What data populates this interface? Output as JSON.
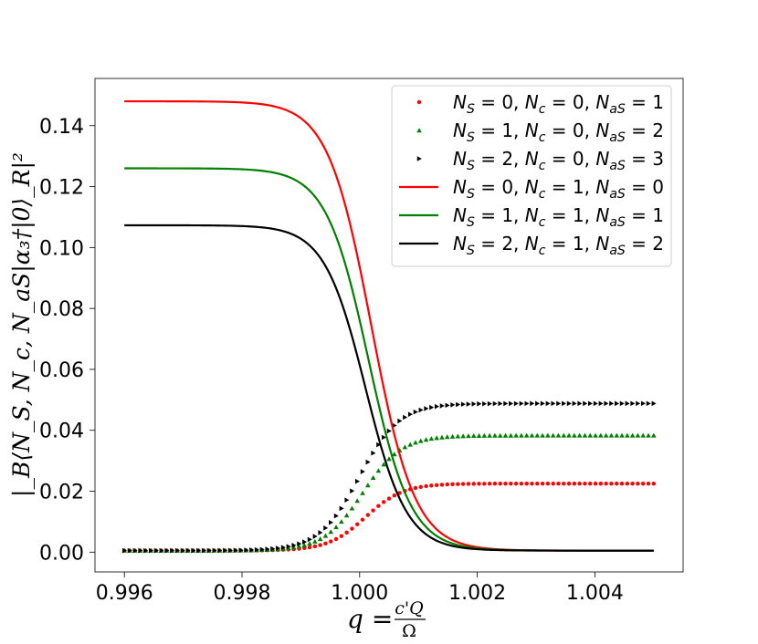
{
  "chart_data": {
    "type": "line",
    "title": "",
    "xlabel": "q = c'Q/Ω",
    "xlabel_parts": {
      "lhs": "q =",
      "num": "c'Q",
      "den": "Ω"
    },
    "ylabel": "|_B⟨N_S, N_c, N_aS|α₃†|0⟩_R|²",
    "xlim": [
      0.9955,
      1.0055
    ],
    "ylim": [
      -0.0065,
      0.1555
    ],
    "x_ticks": [
      0.996,
      0.998,
      1.0,
      1.002,
      1.004
    ],
    "x_tick_labels": [
      "0.996",
      "0.998",
      "1.000",
      "1.002",
      "1.004"
    ],
    "y_ticks": [
      0.0,
      0.02,
      0.04,
      0.06,
      0.08,
      0.1,
      0.12,
      0.14
    ],
    "y_tick_labels": [
      "0.00",
      "0.02",
      "0.04",
      "0.06",
      "0.08",
      "0.10",
      "0.12",
      "0.14"
    ],
    "grid": false,
    "legend_position": "top-right",
    "x_range": [
      0.996,
      1.005
    ],
    "series": [
      {
        "name": "N_S = 0, N_c = 0, N_aS = 1",
        "style": "dots",
        "marker": "circle",
        "color": "#ff0000",
        "sigmoid": {
          "start": 0.0005,
          "end": 0.0225,
          "center": 1.0001,
          "width": 0.00032
        }
      },
      {
        "name": "N_S = 1, N_c = 0, N_aS = 2",
        "style": "dots",
        "marker": "triangle-up",
        "color": "#008000",
        "sigmoid": {
          "start": 0.0005,
          "end": 0.0383,
          "center": 1.00005,
          "width": 0.00033
        }
      },
      {
        "name": "N_S = 2, N_c = 0, N_aS = 3",
        "style": "dots",
        "marker": "triangle-right",
        "color": "#000000",
        "sigmoid": {
          "start": 0.0005,
          "end": 0.0488,
          "center": 1.0,
          "width": 0.00034
        }
      },
      {
        "name": "N_S = 0, N_c = 1, N_aS = 0",
        "style": "line",
        "color": "#ff0000",
        "sigmoid": {
          "start": 0.148,
          "end": 0.0005,
          "center": 1.0002,
          "width": 0.00037
        }
      },
      {
        "name": "N_S = 1, N_c = 1, N_aS = 1",
        "style": "line",
        "color": "#008000",
        "sigmoid": {
          "start": 0.126,
          "end": 0.0005,
          "center": 1.00015,
          "width": 0.00036
        }
      },
      {
        "name": "N_S = 2, N_c = 1, N_aS = 2",
        "style": "line",
        "color": "#000000",
        "sigmoid": {
          "start": 0.1073,
          "end": 0.0005,
          "center": 1.0001,
          "width": 0.00035
        }
      }
    ],
    "legend_entries": [
      {
        "ns": "0",
        "nc": "0",
        "nas": "1"
      },
      {
        "ns": "1",
        "nc": "0",
        "nas": "2"
      },
      {
        "ns": "2",
        "nc": "0",
        "nas": "3"
      },
      {
        "ns": "0",
        "nc": "1",
        "nas": "0"
      },
      {
        "ns": "1",
        "nc": "1",
        "nas": "1"
      },
      {
        "ns": "2",
        "nc": "1",
        "nas": "2"
      }
    ]
  }
}
